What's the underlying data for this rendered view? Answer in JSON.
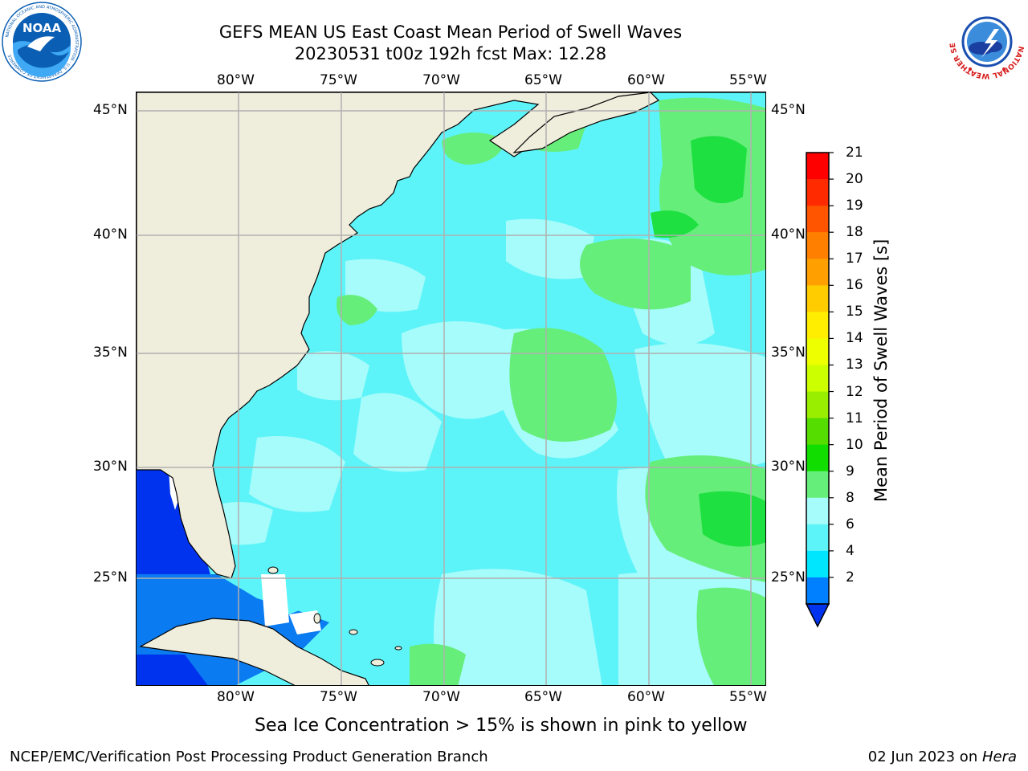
{
  "header": {
    "title_line1": "GEFS MEAN US East Coast Mean Period of Swell Waves",
    "title_line2": "20230531 t00z 192h fcst   Max: 12.28"
  },
  "logos": {
    "left": {
      "name": "NOAA",
      "text": "NOAA",
      "ring_text": "NATIONAL OCEANIC AND ATMOSPHERIC ADMINISTRATION · U.S. DEPARTMENT OF COMMERCE",
      "color": "#0a5fb4"
    },
    "right": {
      "name": "National Weather Service",
      "ring_text": "NATIONAL WEATHER SERVICE",
      "color": "#d81e1e"
    }
  },
  "map": {
    "lon_labels": [
      "80°W",
      "75°W",
      "70°W",
      "65°W",
      "60°W",
      "55°W"
    ],
    "lat_labels": [
      "45°N",
      "40°N",
      "35°N",
      "30°N",
      "25°N"
    ],
    "lon_range": [
      -85,
      -54
    ],
    "lat_range": [
      20.5,
      46
    ],
    "colors": {
      "land": "#efeddc",
      "ocean_base": "#5cf4f8",
      "light": "#a6fbfb",
      "green": "#66ee7a",
      "bright_green": "#1ee040",
      "blue": "#0033ee",
      "mid_blue": "#0a7bf0",
      "grid": "#b0b0b0"
    }
  },
  "colorbar": {
    "label": "Mean Period of Swell Waves [s]",
    "ticks": [
      "21",
      "20",
      "19",
      "18",
      "17",
      "16",
      "15",
      "14",
      "13",
      "12",
      "11",
      "10",
      "9",
      "8",
      "6",
      "4",
      "2"
    ],
    "colors": [
      "#ff0000",
      "#ff2a00",
      "#ff5500",
      "#ff8000",
      "#ffa000",
      "#ffcc00",
      "#ffee00",
      "#eeff00",
      "#ccff00",
      "#99ee00",
      "#55dd00",
      "#11dd00",
      "#66ee7a",
      "#a6fbfb",
      "#5cf4f8",
      "#00e6ff",
      "#0080ff"
    ],
    "extend_color": "#0033ee"
  },
  "footer": {
    "note": "Sea Ice Concentration > 15% is shown in pink to yellow",
    "credit": "NCEP/EMC/Verification Post Processing Product Generation Branch",
    "date": "02 Jun 2023 on ",
    "machine": "Hera"
  }
}
